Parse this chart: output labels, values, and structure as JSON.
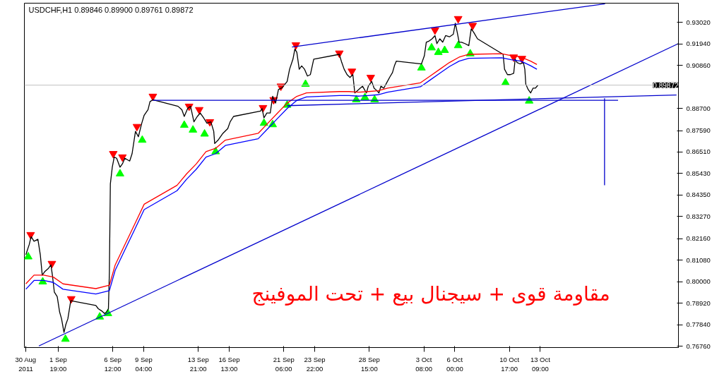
{
  "chart_data": {
    "type": "line",
    "title": "USDCHF,H1  0.89846 0.89900 0.89761 0.89872",
    "xlim": [
      "2011-08-29T21:00",
      "2011-10-25T07:00"
    ],
    "ylim": [
      0.7669,
      0.9399
    ],
    "xticks": [
      {
        "value": "2011-08-30T00:00",
        "label": "30 Aug 2011"
      },
      {
        "value": "2011-09-01T19:00",
        "label": "1 Sep 19:00"
      },
      {
        "value": "2011-09-06T12:00",
        "label": "6 Sep 12:00"
      },
      {
        "value": "2011-09-09T04:00",
        "label": "9 Sep 04:00"
      },
      {
        "value": "2011-09-13T21:00",
        "label": "13 Sep 21:00"
      },
      {
        "value": "2011-09-16T13:00",
        "label": "16 Sep 13:00"
      },
      {
        "value": "2011-09-21T06:00",
        "label": "21 Sep 06:00"
      },
      {
        "value": "2011-09-23T22:00",
        "label": "23 Sep 22:00"
      },
      {
        "value": "2011-09-28T15:00",
        "label": "28 Sep 15:00"
      },
      {
        "value": "2011-10-03T08:00",
        "label": "3 Oct 08:00"
      },
      {
        "value": "2011-10-06T00:00",
        "label": "6 Oct 00:00"
      },
      {
        "value": "2011-10-10T17:00",
        "label": "10 Oct 17:00"
      },
      {
        "value": "2011-10-13T09:00",
        "label": "13 Oct 09:00"
      }
    ],
    "yticks": [
      {
        "value": 0.9302,
        "label": "0.93020"
      },
      {
        "value": 0.9194,
        "label": "0.91940"
      },
      {
        "value": 0.9086,
        "label": "0.90860"
      },
      {
        "value": 0.887,
        "label": "0.88700"
      },
      {
        "value": 0.8759,
        "label": "0.87590"
      },
      {
        "value": 0.8651,
        "label": "0.86510"
      },
      {
        "value": 0.8543,
        "label": "0.85430"
      },
      {
        "value": 0.8435,
        "label": "0.84350"
      },
      {
        "value": 0.8327,
        "label": "0.83270"
      },
      {
        "value": 0.8216,
        "label": "0.82160"
      },
      {
        "value": 0.8108,
        "label": "0.81080"
      },
      {
        "value": 0.8,
        "label": "0.80000"
      },
      {
        "value": 0.7892,
        "label": "0.78920"
      },
      {
        "value": 0.7784,
        "label": "0.77840"
      },
      {
        "value": 0.7676,
        "label": "0.76760"
      }
    ],
    "grid": false,
    "ref_lines": [
      {
        "axis": "y",
        "value": 0.89872,
        "label": "0.89872",
        "color": "#c0c0c0"
      }
    ],
    "annotations": [
      "مقاومة  قوى + سيجنال بيع + تحت الموفينج"
    ],
    "series": [
      {
        "color": "#000000",
        "x": [
          "2011-08-30T00:00",
          "2011-08-30T07:00",
          "2011-08-30T11:00",
          "2011-08-30T17:00",
          "2011-08-31T01:00",
          "2011-08-31T06:00",
          "2011-08-31T10:00",
          "2011-08-31T15:00",
          "2011-08-31T23:00",
          "2011-09-01T04:00",
          "2011-09-01T07:00",
          "2011-09-01T11:00",
          "2011-09-01T17:00",
          "2011-09-01T22:00",
          "2011-09-02T02:00",
          "2011-09-02T07:00",
          "2011-09-02T11:00",
          "2011-09-02T15:00",
          "2011-09-02T21:00",
          "2011-09-05T01:00",
          "2011-09-05T06:00",
          "2011-09-05T13:00",
          "2011-09-05T19:00",
          "2011-09-05T23:00",
          "2011-09-06T03:00",
          "2011-09-06T05:00",
          "2011-09-06T07:00",
          "2011-09-06T11:00",
          "2011-09-06T15:00",
          "2011-09-06T20:00",
          "2011-09-07T03:00",
          "2011-09-07T08:00",
          "2011-09-07T13:00",
          "2011-09-07T23:00",
          "2011-09-08T04:00",
          "2011-09-08T11:00",
          "2011-09-08T17:00",
          "2011-09-09T00:00",
          "2011-09-09T05:00",
          "2011-09-09T13:00",
          "2011-09-09T17:00",
          "2011-09-09T23:00",
          "2011-09-12T03:00",
          "2011-09-12T11:00",
          "2011-09-12T16:00",
          "2011-09-12T23:00",
          "2011-09-13T05:00",
          "2011-09-13T12:00",
          "2011-09-13T19:00",
          "2011-09-14T01:00",
          "2011-09-14T08:00",
          "2011-09-14T15:00",
          "2011-09-14T23:00",
          "2011-09-15T05:00",
          "2011-09-15T07:00",
          "2011-09-15T14:00",
          "2011-09-16T00:00",
          "2011-09-16T10:00",
          "2011-09-16T15:00",
          "2011-09-16T22:00",
          "2011-09-19T06:00",
          "2011-09-19T09:00",
          "2011-09-19T13:00",
          "2011-09-19T19:00",
          "2011-09-20T02:00",
          "2011-09-20T07:00",
          "2011-09-20T13:00",
          "2011-09-20T19:00",
          "2011-09-21T03:00",
          "2011-09-21T13:00",
          "2011-09-21T18:00",
          "2011-09-22T01:00",
          "2011-09-22T05:00",
          "2011-09-22T09:00",
          "2011-09-22T14:00",
          "2011-09-22T19:00",
          "2011-09-23T01:00",
          "2011-09-23T07:00",
          "2011-09-23T13:00",
          "2011-09-23T20:00",
          "2011-09-26T01:00",
          "2011-09-26T06:00",
          "2011-09-26T11:00",
          "2011-09-26T17:00",
          "2011-09-26T23:00",
          "2011-09-27T05:00",
          "2011-09-27T09:00",
          "2011-09-27T17:00",
          "2011-09-28T01:00",
          "2011-09-28T05:00",
          "2011-09-28T09:00",
          "2011-09-28T13:00",
          "2011-09-28T20:00",
          "2011-09-29T01:00",
          "2011-09-29T07:00",
          "2011-09-29T11:00",
          "2011-09-29T15:00",
          "2011-09-29T21:00",
          "2011-09-30T03:00",
          "2011-09-30T09:00",
          "2011-09-30T15:00",
          "2011-09-30T19:00",
          "2011-09-30T23:00",
          "2011-10-03T03:00",
          "2011-10-03T09:00",
          "2011-10-03T13:00",
          "2011-10-03T19:00",
          "2011-10-04T01:00",
          "2011-10-04T07:00",
          "2011-10-04T11:00",
          "2011-10-04T17:00",
          "2011-10-04T23:00",
          "2011-10-05T05:00",
          "2011-10-05T13:00",
          "2011-10-05T21:00",
          "2011-10-06T01:00",
          "2011-10-06T05:00",
          "2011-10-06T09:00",
          "2011-10-06T14:00",
          "2011-10-06T21:00",
          "2011-10-07T05:00",
          "2011-10-07T10:00",
          "2011-10-07T15:00",
          "2011-10-07T23:00",
          "2011-10-10T04:00",
          "2011-10-10T07:00",
          "2011-10-10T13:00",
          "2011-10-10T19:00",
          "2011-10-11T02:00",
          "2011-10-11T05:00",
          "2011-10-11T09:00",
          "2011-10-11T15:00",
          "2011-10-11T22:00",
          "2011-10-12T01:00",
          "2011-10-12T03:00",
          "2011-10-12T08:00",
          "2011-10-12T13:00",
          "2011-10-12T18:00",
          "2011-10-12T23:00",
          "2011-10-13T04:00"
        ],
        "values": [
          0.8135,
          0.8186,
          0.8226,
          0.8203,
          0.8213,
          0.8135,
          0.8033,
          0.805,
          0.8067,
          0.8084,
          0.8033,
          0.7948,
          0.7925,
          0.7847,
          0.7813,
          0.7745,
          0.7786,
          0.7813,
          0.7904,
          0.788,
          0.7864,
          0.7853,
          0.784,
          0.7847,
          0.7864,
          0.805,
          0.8491,
          0.8575,
          0.8626,
          0.862,
          0.8575,
          0.8592,
          0.862,
          0.8606,
          0.8643,
          0.8755,
          0.8728,
          0.8796,
          0.8836,
          0.8864,
          0.8904,
          0.8914,
          0.8881,
          0.8864,
          0.883,
          0.887,
          0.8881,
          0.8803,
          0.883,
          0.8847,
          0.8823,
          0.8796,
          0.8803,
          0.8755,
          0.8694,
          0.8711,
          0.8745,
          0.8769,
          0.8803,
          0.883,
          0.8857,
          0.887,
          0.8823,
          0.8847,
          0.8847,
          0.8931,
          0.8897,
          0.8965,
          0.8975,
          0.9006,
          0.9067,
          0.9118,
          0.9169,
          0.9152,
          0.9067,
          0.9084,
          0.9067,
          0.9033,
          0.904,
          0.9118,
          0.9142,
          0.9101,
          0.9067,
          0.904,
          0.9026,
          0.904,
          0.8948,
          0.8965,
          0.8982,
          0.8965,
          0.8948,
          0.8982,
          0.9006,
          0.8972,
          0.8959,
          0.8948,
          0.8982,
          0.8972,
          0.8999,
          0.9026,
          0.905,
          0.9084,
          0.9108,
          0.9094,
          0.9135,
          0.9203,
          0.9209,
          0.922,
          0.9236,
          0.9196,
          0.922,
          0.9203,
          0.9236,
          0.923,
          0.9243,
          0.9298,
          0.9253,
          0.9203,
          0.9203,
          0.9196,
          0.9186,
          0.927,
          0.9253,
          0.922,
          0.9142,
          0.9067,
          0.904,
          0.904,
          0.9047,
          0.9118,
          0.9101,
          0.9094,
          0.9101,
          0.9067,
          0.8992,
          0.8965,
          0.8948,
          0.8972,
          0.8972,
          0.8987
        ]
      },
      {
        "color": "#ff0000",
        "x": [
          "2011-08-30T00:00",
          "2011-08-30T17:00",
          "2011-08-31T13:00",
          "2011-09-01T09:00",
          "2011-09-02T05:00",
          "2011-09-05T01:00",
          "2011-09-06T05:00",
          "2011-09-06T17:00",
          "2011-09-07T13:00",
          "2011-09-08T09:00",
          "2011-09-09T05:00",
          "2011-09-12T01:00",
          "2011-09-12T21:00",
          "2011-09-13T17:00",
          "2011-09-14T13:00",
          "2011-09-15T09:00",
          "2011-09-16T05:00",
          "2011-09-19T01:00",
          "2011-09-19T21:00",
          "2011-09-20T17:00",
          "2011-09-21T13:00",
          "2011-09-22T09:00",
          "2011-09-23T05:00",
          "2011-09-26T01:00",
          "2011-09-26T21:00",
          "2011-09-27T17:00",
          "2011-09-28T13:00",
          "2011-09-29T09:00",
          "2011-09-30T05:00",
          "2011-10-03T01:00",
          "2011-10-03T21:00",
          "2011-10-04T17:00",
          "2011-10-05T13:00",
          "2011-10-06T09:00",
          "2011-10-07T05:00",
          "2011-10-10T01:00",
          "2011-10-10T21:00",
          "2011-10-11T17:00",
          "2011-10-12T13:00",
          "2011-10-13T02:00"
        ],
        "values": [
          0.7989,
          0.8033,
          0.8033,
          0.8023,
          0.7989,
          0.7965,
          0.7982,
          0.8084,
          0.8186,
          0.8287,
          0.8389,
          0.8484,
          0.8542,
          0.8592,
          0.8653,
          0.867,
          0.8711,
          0.8745,
          0.8796,
          0.8847,
          0.8897,
          0.8931,
          0.8948,
          0.8955,
          0.8955,
          0.8952,
          0.8955,
          0.8959,
          0.8972,
          0.8999,
          0.9033,
          0.9067,
          0.9101,
          0.9128,
          0.9142,
          0.9145,
          0.9135,
          0.9128,
          0.9108,
          0.9091
        ]
      },
      {
        "color": "#0000ff",
        "x": [
          "2011-08-30T00:00",
          "2011-08-30T17:00",
          "2011-08-31T13:00",
          "2011-09-01T09:00",
          "2011-09-02T05:00",
          "2011-09-05T01:00",
          "2011-09-06T05:00",
          "2011-09-06T17:00",
          "2011-09-07T13:00",
          "2011-09-08T09:00",
          "2011-09-09T05:00",
          "2011-09-12T01:00",
          "2011-09-12T21:00",
          "2011-09-13T17:00",
          "2011-09-14T13:00",
          "2011-09-15T09:00",
          "2011-09-16T05:00",
          "2011-09-19T01:00",
          "2011-09-19T21:00",
          "2011-09-20T17:00",
          "2011-09-21T13:00",
          "2011-09-22T09:00",
          "2011-09-23T05:00",
          "2011-09-26T01:00",
          "2011-09-26T21:00",
          "2011-09-27T17:00",
          "2011-09-28T13:00",
          "2011-09-29T09:00",
          "2011-09-30T05:00",
          "2011-10-03T01:00",
          "2011-10-03T21:00",
          "2011-10-04T17:00",
          "2011-10-05T13:00",
          "2011-10-06T09:00",
          "2011-10-07T05:00",
          "2011-10-10T01:00",
          "2011-10-10T21:00",
          "2011-10-11T17:00",
          "2011-10-12T13:00",
          "2011-10-13T02:00"
        ],
        "values": [
          0.7962,
          0.8006,
          0.8006,
          0.7996,
          0.7962,
          0.7938,
          0.7955,
          0.8057,
          0.8159,
          0.826,
          0.8362,
          0.8457,
          0.8515,
          0.8565,
          0.8626,
          0.8643,
          0.8684,
          0.8718,
          0.8769,
          0.882,
          0.887,
          0.8911,
          0.8928,
          0.8935,
          0.8935,
          0.8932,
          0.8935,
          0.8939,
          0.8952,
          0.8979,
          0.9013,
          0.9047,
          0.9081,
          0.9108,
          0.9122,
          0.9125,
          0.9115,
          0.9108,
          0.9085,
          0.9067
        ]
      },
      {
        "color": "#0000cc",
        "x": [
          "2011-09-21T23:00",
          "2011-10-18T23:00"
        ],
        "values": [
          0.9179,
          0.9396
        ]
      },
      {
        "color": "#0000cc",
        "x": [
          "2011-08-31T03:00",
          "2011-10-25T07:00"
        ],
        "values": [
          0.7677,
          0.9196
        ]
      },
      {
        "color": "#0000cc",
        "x": [
          "2011-09-09T23:00",
          "2011-10-20T02:00"
        ],
        "values": [
          0.8911,
          0.8911
        ]
      },
      {
        "color": "#0000cc",
        "x": [
          "2011-09-21T13:00",
          "2011-10-25T03:00"
        ],
        "values": [
          0.8884,
          0.8938
        ]
      },
      {
        "color": "#0000cc",
        "x": [
          "2011-10-18T22:00",
          "2011-10-18T22:00"
        ],
        "values": [
          0.8921,
          0.8484
        ]
      },
      {
        "type": "scatter",
        "color": "#ff0000",
        "x": [
          "2011-08-30T10:00",
          "2011-09-01T06:00",
          "2011-09-02T22:00",
          "2011-09-06T13:00",
          "2011-09-07T08:00",
          "2011-09-08T14:00",
          "2011-09-09T23:00",
          "2011-09-13T02:00",
          "2011-09-13T23:00",
          "2011-09-14T21:00",
          "2011-09-19T11:00",
          "2011-09-20T09:00",
          "2011-09-21T00:00",
          "2011-09-22T07:00",
          "2011-09-26T01:00",
          "2011-09-27T03:00",
          "2011-09-28T18:00",
          "2011-10-04T07:00",
          "2011-10-06T07:00",
          "2011-10-07T13:00",
          "2011-10-11T02:00",
          "2011-10-11T19:00"
        ],
        "values": [
          0.8236,
          0.8091,
          0.7914,
          0.8643,
          0.8626,
          0.8779,
          0.8931,
          0.8881,
          0.8864,
          0.8803,
          0.8874,
          0.8914,
          0.8982,
          0.9189,
          0.9148,
          0.9057,
          0.9026,
          0.9264,
          0.9321,
          0.9287,
          0.9128,
          0.9121
        ]
      },
      {
        "type": "scatter",
        "marker": "triangle",
        "color": "#00ff00",
        "x": [
          "2011-08-30T05:00",
          "2011-08-31T11:00",
          "2011-09-02T10:00",
          "2011-09-05T09:00",
          "2011-09-06T02:00",
          "2011-09-07T03:00",
          "2011-09-09T01:00",
          "2011-09-12T16:00",
          "2011-09-13T10:00",
          "2011-09-14T10:00",
          "2011-09-15T09:00",
          "2011-09-19T13:00",
          "2011-09-20T07:00",
          "2011-09-21T13:00",
          "2011-09-23T03:00",
          "2011-09-27T12:00",
          "2011-09-28T06:00",
          "2011-09-29T02:00",
          "2011-10-03T03:00",
          "2011-10-04T00:00",
          "2011-10-04T14:00",
          "2011-10-05T03:00",
          "2011-10-06T07:00",
          "2011-10-07T08:00",
          "2011-10-10T09:00",
          "2011-10-12T10:00"
        ],
        "values": [
          0.8125,
          0.7999,
          0.7711,
          0.7823,
          0.784,
          0.8542,
          0.8711,
          0.8786,
          0.8762,
          0.8742,
          0.8653,
          0.8796,
          0.8789,
          0.8887,
          0.8992,
          0.8914,
          0.8925,
          0.8914,
          0.9074,
          0.9175,
          0.9152,
          0.9162,
          0.9186,
          0.9145,
          0.8999,
          0.8908
        ]
      }
    ]
  }
}
